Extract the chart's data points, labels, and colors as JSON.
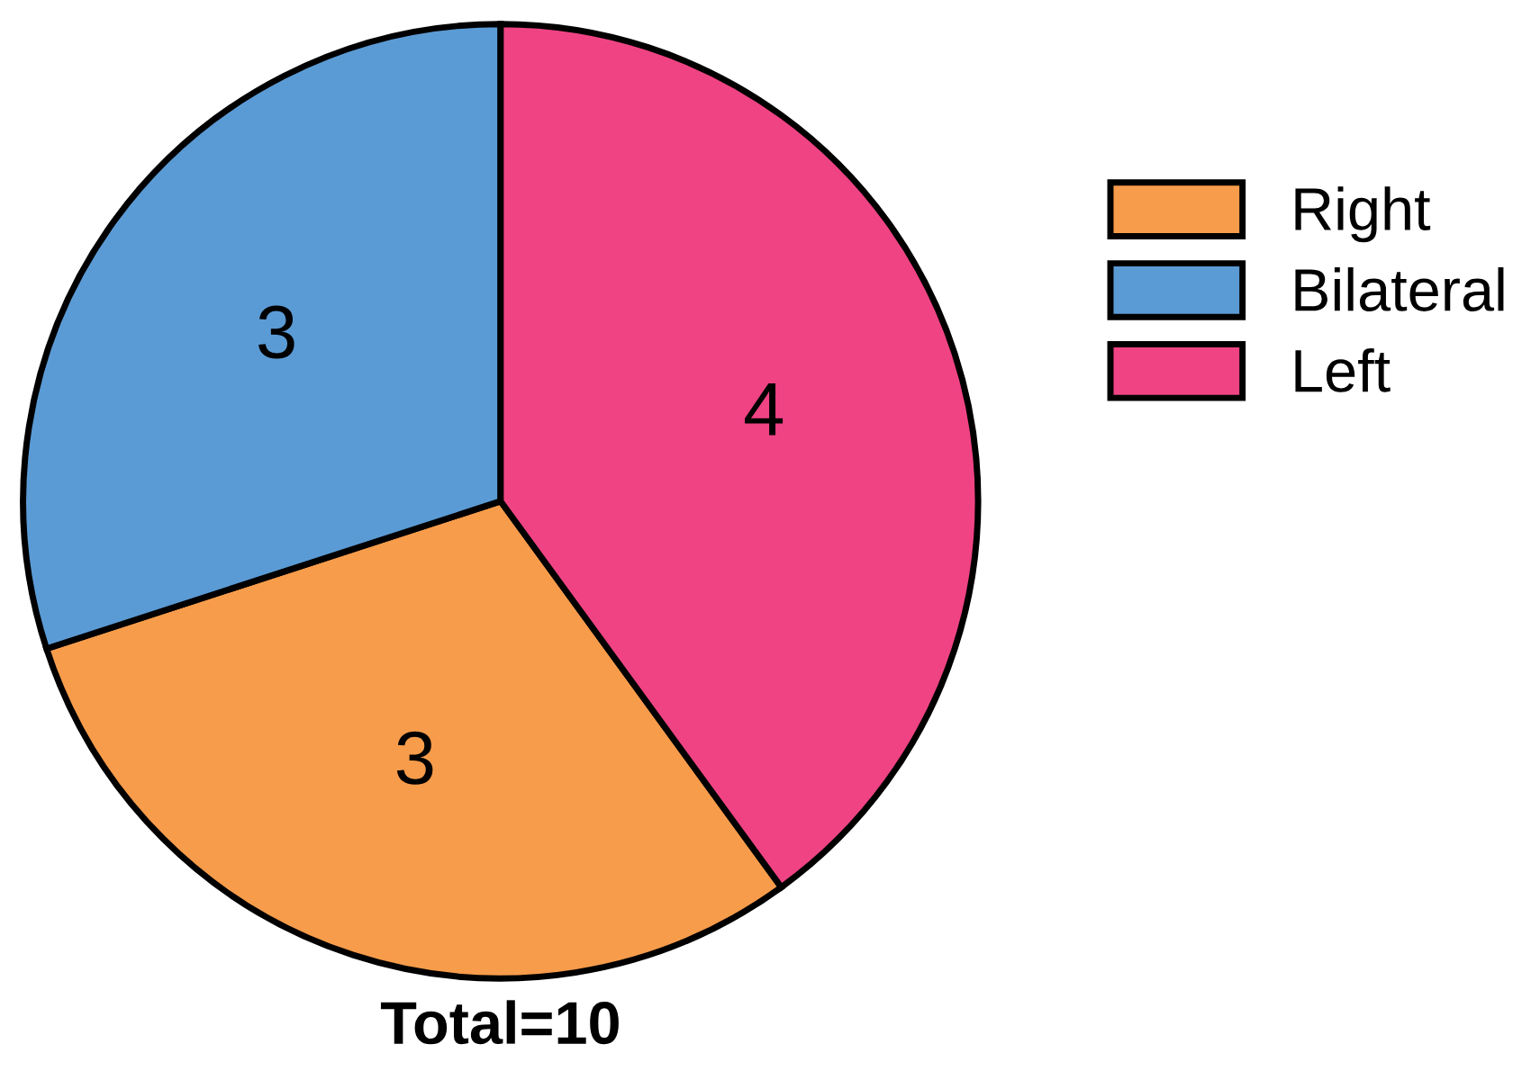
{
  "chart_data": {
    "type": "pie",
    "categories": [
      "Right",
      "Bilateral",
      "Left"
    ],
    "values": [
      3,
      3,
      4
    ],
    "colors": [
      "#f79c4b",
      "#5b9bd5",
      "#ef4384"
    ],
    "data_labels": true,
    "legend": "right",
    "annotations": [
      "Total=10"
    ]
  }
}
